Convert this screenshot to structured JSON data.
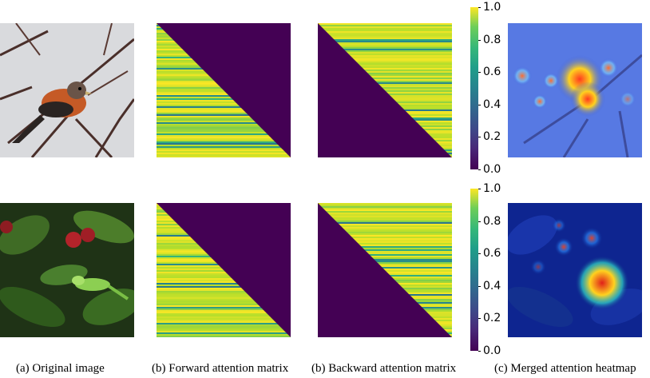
{
  "colormap_name": "viridis",
  "colorbar_ticks": [
    "0.0",
    "0.2",
    "0.4",
    "0.6",
    "0.8",
    "1.0"
  ],
  "captions": {
    "original": "(a) Original image",
    "forward": "(b) Forward attention matrix",
    "backward": "(b) Backward attention matrix",
    "merged": "(c) Merged attention heatmap"
  },
  "rows": [
    {
      "subject": "bird on branch",
      "photo_bg": "#d9d9dc",
      "heat_bg": "#3a5bd9"
    },
    {
      "subject": "green lizard among leaves",
      "photo_bg": "#1d2e14",
      "heat_bg": "#0c1f86"
    }
  ],
  "colors": {
    "matrix_empty": "#440154",
    "viridis_low": "#440154",
    "viridis_mid": "#21918c",
    "viridis_high": "#fde725"
  }
}
